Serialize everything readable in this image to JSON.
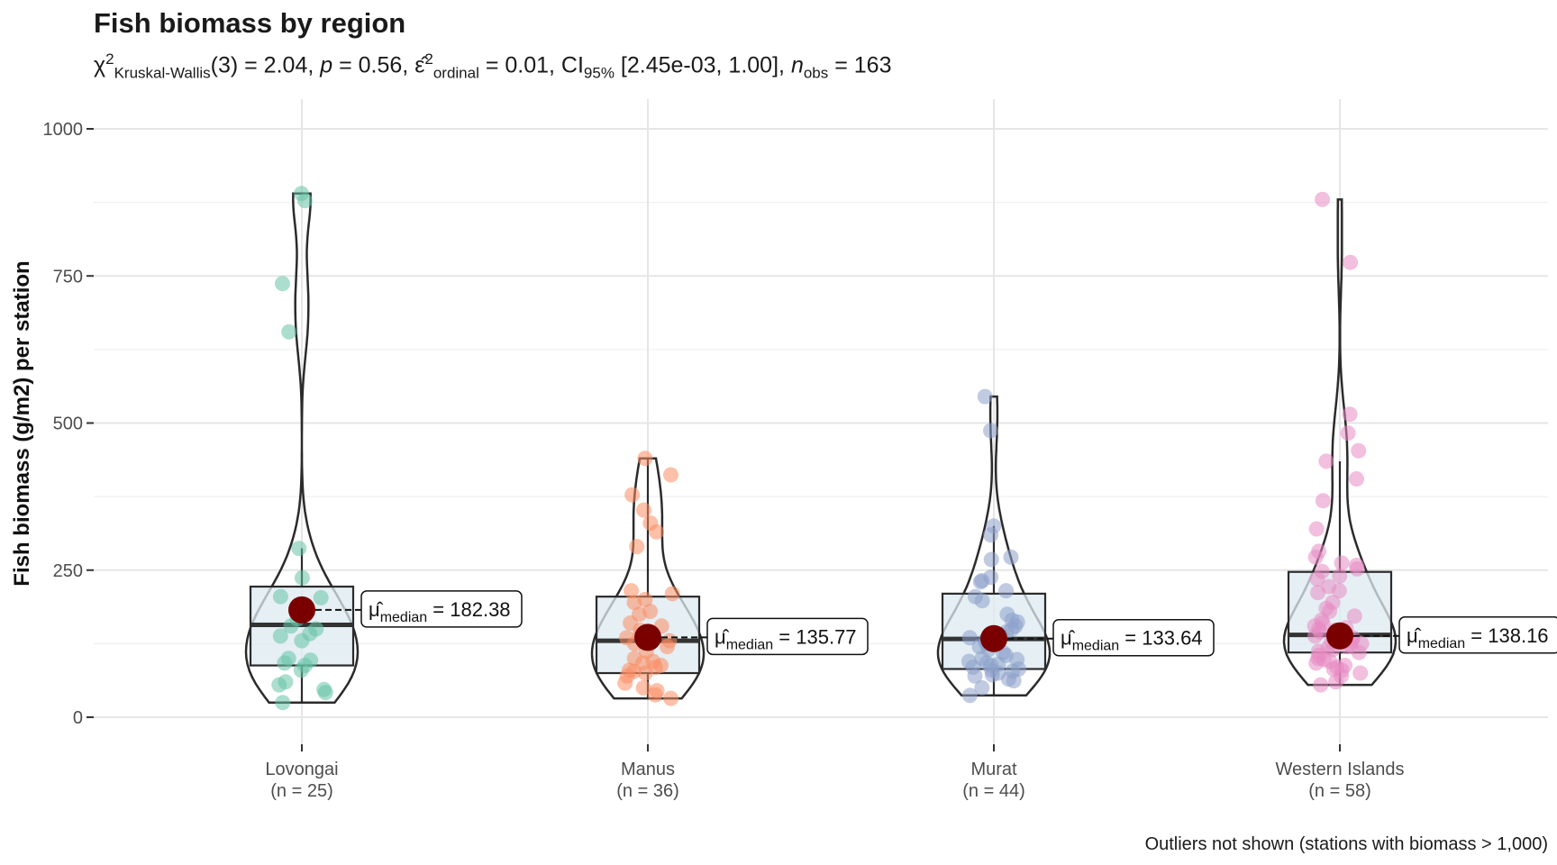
{
  "title": "Fish biomass by region",
  "subtitle": {
    "chi_symbol": "χ",
    "chi_sup": "2",
    "test_name": "Kruskal-Wallis",
    "df_text": "(3) = 2.04, ",
    "p_symbol": "p",
    "p_text": " = 0.56, ",
    "eps_symbol": "ε̂",
    "eps_sup": "2",
    "eps_sub": "ordinal",
    "eps_text": " = 0.01, CI",
    "ci_sub": "95%",
    "ci_text": " [2.45e-03, 1.00], ",
    "n_symbol": "n",
    "n_sub": "obs",
    "n_text": " = 163"
  },
  "caption": "Outliers not shown (stations with biomass > 1,000)",
  "colors": {
    "grid": "#e6e6e6",
    "box_fill": "#dceaf0",
    "outline": "#2b2b2b",
    "median_point": "#7a0000"
  },
  "chart_data": {
    "type": "violin-box",
    "title": "Fish biomass by region",
    "ylabel": "Fish biomass (g/m2) per station",
    "xlabel": "",
    "ylim": [
      0,
      1000
    ],
    "yticks": [
      0,
      250,
      500,
      750,
      1000
    ],
    "grid": true,
    "categories": [
      {
        "name": "Lovongai",
        "n_label": "(n = 25)",
        "color": "#66c2a5",
        "median": 182.38,
        "median_label_prefix": "μ̂",
        "median_label_sub": "median",
        "median_label_value": " = 182.38",
        "box": {
          "q1": 88,
          "median": 157,
          "q3": 222,
          "whisker_low": 25,
          "whisker_high": 287
        },
        "violin_max": 890,
        "violin_min": 25,
        "points": [
          890,
          878,
          737,
          655,
          287,
          237,
          205,
          203,
          188,
          167,
          155,
          150,
          142,
          138,
          130,
          100,
          97,
          92,
          88,
          80,
          60,
          55,
          47,
          42,
          25
        ]
      },
      {
        "name": "Manus",
        "n_label": "(n = 36)",
        "color": "#fc8d62",
        "median": 135.77,
        "median_label_prefix": "μ̂",
        "median_label_sub": "median",
        "median_label_value": " = 135.77",
        "box": {
          "q1": 75,
          "median": 130,
          "q3": 205,
          "whisker_low": 32,
          "whisker_high": 440
        },
        "violin_max": 440,
        "violin_min": 32,
        "points": [
          440,
          412,
          378,
          352,
          330,
          315,
          290,
          215,
          210,
          200,
          195,
          180,
          175,
          160,
          155,
          148,
          140,
          135,
          130,
          125,
          120,
          112,
          100,
          95,
          92,
          88,
          85,
          80,
          78,
          75,
          70,
          58,
          50,
          45,
          38,
          32
        ]
      },
      {
        "name": "Murat",
        "n_label": "(n = 44)",
        "color": "#8da0cb",
        "median": 133.64,
        "median_label_prefix": "μ̂",
        "median_label_sub": "median",
        "median_label_value": " = 133.64",
        "box": {
          "q1": 82,
          "median": 133,
          "q3": 210,
          "whisker_low": 37,
          "whisker_high": 325
        },
        "violin_max": 545,
        "violin_min": 37,
        "points": [
          545,
          487,
          325,
          310,
          272,
          268,
          238,
          232,
          230,
          215,
          205,
          198,
          175,
          165,
          162,
          155,
          150,
          145,
          140,
          138,
          135,
          130,
          125,
          120,
          115,
          110,
          105,
          100,
          98,
          95,
          92,
          90,
          88,
          85,
          82,
          80,
          78,
          75,
          72,
          70,
          65,
          62,
          50,
          37
        ]
      },
      {
        "name": "Western Islands",
        "n_label": "(n = 58)",
        "color": "#e78ac3",
        "median": 138.16,
        "median_label_prefix": "μ̂",
        "median_label_sub": "median",
        "median_label_value": " = 138.16",
        "box": {
          "q1": 110,
          "median": 140,
          "q3": 247,
          "whisker_low": 55,
          "whisker_high": 435
        },
        "violin_max": 880,
        "violin_min": 55,
        "points": [
          880,
          773,
          515,
          483,
          453,
          435,
          405,
          368,
          320,
          282,
          272,
          262,
          258,
          252,
          248,
          240,
          235,
          222,
          215,
          212,
          195,
          185,
          180,
          172,
          165,
          160,
          155,
          152,
          150,
          148,
          145,
          142,
          140,
          138,
          135,
          132,
          130,
          128,
          125,
          122,
          120,
          118,
          115,
          112,
          110,
          105,
          100,
          98,
          95,
          92,
          88,
          85,
          82,
          80,
          75,
          70,
          60,
          55
        ]
      }
    ]
  }
}
